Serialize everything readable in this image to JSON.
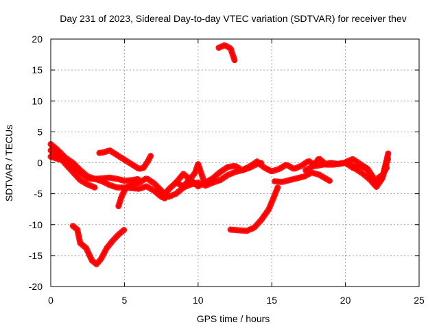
{
  "chart_data": {
    "type": "line",
    "title": "Day 231 of 2023, Sidereal Day-to-day VTEC variation (SDTVAR) for receiver thev",
    "xlabel": "GPS time / hours",
    "ylabel": "SDTVAR / TECUs",
    "xlim": [
      0,
      25
    ],
    "ylim": [
      -20,
      20
    ],
    "xticks": [
      0,
      5,
      10,
      15,
      20,
      25
    ],
    "xtick_labels": [
      "0",
      "5",
      "10",
      "15",
      "20",
      "25"
    ],
    "yticks": [
      20,
      15,
      10,
      5,
      0,
      -5,
      -10,
      -15,
      -20
    ],
    "ytick_labels": [
      "20",
      "15",
      "10",
      "5",
      "0",
      "-5",
      "-10",
      "-15",
      "-20"
    ],
    "grid": true,
    "legend": "none",
    "color": "#ff0000",
    "series": [
      {
        "name": "trace-a",
        "x": [
          0,
          0.5,
          1,
          1.5,
          2,
          2.5,
          3,
          3.5,
          4,
          4.5,
          5,
          5.5,
          6,
          6.5,
          7,
          7.5,
          7.8
        ],
        "y": [
          3,
          2,
          0.8,
          0,
          -1.2,
          -2.2,
          -2.6,
          -3,
          -3.6,
          -4,
          -4,
          -4.1,
          -4.2,
          -3.8,
          -4.5,
          -5.5,
          -5.8
        ]
      },
      {
        "name": "trace-b",
        "x": [
          0,
          0.5,
          1,
          1.5,
          2,
          2.5,
          3,
          3.5,
          4,
          4.5,
          5,
          5.5,
          6
        ],
        "y": [
          1,
          0.6,
          0.3,
          -0.8,
          -1.6,
          -2.5,
          -2.6,
          -2.5,
          -2.4,
          -2.6,
          -2.9,
          -2.8,
          -2.6
        ]
      },
      {
        "name": "trace-c",
        "x": [
          0,
          0.5,
          1,
          1.5,
          2,
          2.5,
          3
        ],
        "y": [
          2,
          1.2,
          -0.2,
          -1.5,
          -2.8,
          -3.5,
          -4
        ]
      },
      {
        "name": "trace-d",
        "x": [
          3.3,
          3.6,
          4,
          4.4,
          4.8,
          5.2,
          5.6,
          6,
          6.3,
          6.6,
          6.8
        ],
        "y": [
          1.6,
          1.7,
          2,
          1.4,
          0.8,
          0.2,
          -0.4,
          -1,
          -0.8,
          0.3,
          1.2
        ]
      },
      {
        "name": "trace-e",
        "x": [
          4.6,
          4.8,
          5.1,
          5.5,
          6,
          6.5,
          7,
          7.5,
          8,
          8.5,
          9,
          9.5,
          10
        ],
        "y": [
          -7,
          -5.5,
          -4,
          -3.5,
          -3.2,
          -2.5,
          -3.3,
          -4.5,
          -5.5,
          -5,
          -4,
          -3.5,
          -3.2
        ]
      },
      {
        "name": "trace-f",
        "x": [
          1.5,
          1.8,
          2,
          2.4,
          2.8,
          3.1,
          3.4,
          3.8,
          4.2,
          4.6,
          5
        ],
        "y": [
          -10.2,
          -10.8,
          -13,
          -13.8,
          -15.8,
          -16.4,
          -15.6,
          -13.8,
          -12.6,
          -11.6,
          -10.8
        ]
      },
      {
        "name": "trace-g",
        "x": [
          11.4,
          11.8,
          12.2,
          12.5
        ],
        "y": [
          18.6,
          19,
          18.5,
          16.4
        ]
      },
      {
        "name": "trace-h",
        "x": [
          7.3,
          7.7,
          8,
          8.5,
          9,
          9.5,
          10,
          10.5,
          11,
          11.5,
          12,
          12.5,
          13,
          13.5,
          14,
          14.5,
          15,
          15.5,
          16,
          16.5,
          17,
          17.5,
          18,
          18.5,
          19,
          19.5,
          20,
          20.5,
          21,
          21.5,
          22,
          22.5,
          22.9
        ],
        "y": [
          -4.5,
          -5.5,
          -4.3,
          -3.2,
          -1.8,
          -2.8,
          -3.8,
          -3.2,
          -2.5,
          -1.5,
          -0.7,
          -0.5,
          -1.2,
          -0.6,
          0.2,
          -0.8,
          -1.4,
          -1,
          -0.3,
          -1,
          -0.5,
          0.3,
          -0.5,
          -0.3,
          0,
          -0.2,
          0,
          -0.8,
          -0.5,
          -1,
          -3.3,
          -2.5,
          0.8
        ]
      },
      {
        "name": "trace-i",
        "x": [
          8.5,
          9,
          9.5,
          9.8,
          10,
          10.5,
          11,
          11.5,
          12,
          12.5,
          13,
          13.5,
          14,
          14.3
        ],
        "y": [
          -3.2,
          -3.8,
          -2.5,
          -1.6,
          -0.2,
          -3.7,
          -3.2,
          -2.8,
          -2,
          -1.5,
          -1.2,
          -0.8,
          -0.2,
          0
        ]
      },
      {
        "name": "trace-j",
        "x": [
          12.2,
          12.7,
          13.3,
          13.8,
          14.3,
          14.8,
          15.2,
          15.4
        ],
        "y": [
          -10.8,
          -10.9,
          -11,
          -10.5,
          -9.2,
          -7.5,
          -5.2,
          -4
        ]
      },
      {
        "name": "trace-k",
        "x": [
          15.2,
          15.7,
          16.2,
          16.7,
          17.2,
          17.7,
          18.2,
          18.7,
          19
        ],
        "y": [
          -3,
          -3.1,
          -2.8,
          -2.5,
          -2.2,
          -1.6,
          -1.9,
          -2.6,
          -3
        ]
      },
      {
        "name": "trace-l",
        "x": [
          17.3,
          17.8,
          18.2,
          18.7,
          19.2,
          19.7,
          20.2,
          20.7,
          21.2,
          21.7,
          22.1,
          22.5,
          22.9
        ],
        "y": [
          -1.2,
          -0.6,
          0.7,
          -0.3,
          -0.3,
          -0.1,
          0.1,
          -1,
          -1.8,
          -2.8,
          -3.9,
          -2.5,
          1.5
        ]
      },
      {
        "name": "trace-m",
        "x": [
          20.1,
          20.5,
          21,
          21.5,
          22,
          22.5,
          22.8
        ],
        "y": [
          0.2,
          0.6,
          -0.2,
          -1,
          -2.8,
          -2,
          -0.8
        ]
      }
    ]
  }
}
